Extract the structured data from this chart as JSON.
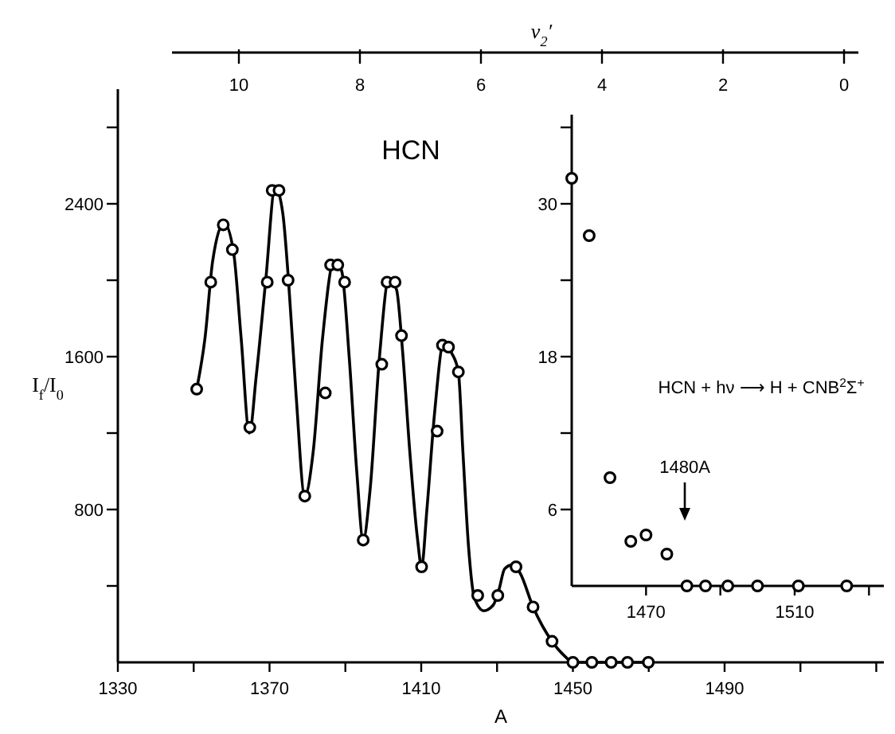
{
  "chart_data": [
    {
      "type": "line",
      "title": "HCN",
      "xlabel": "A",
      "ylabel": "I$_{f}$/I$_{0}$",
      "x2label": "ν$_{2}$′",
      "xlim": [
        1330,
        1532
      ],
      "xticks": [
        1330,
        {
          "value": 1350,
          "label": null
        },
        1370,
        {
          "value": 1390,
          "label": null
        },
        1410,
        {
          "value": 1430,
          "label": null
        },
        1450,
        {
          "value": 1470,
          "label": null
        },
        1490,
        {
          "value": 1510,
          "label": null
        },
        {
          "value": 1530,
          "label": null
        }
      ],
      "ylim": [
        0,
        3000
      ],
      "yticks": [
        {
          "value": 400,
          "label": null
        },
        800,
        {
          "value": 1200,
          "label": null
        },
        1600,
        {
          "value": 2000,
          "label": null
        },
        2400,
        {
          "value": 2800,
          "label": null
        }
      ],
      "x2lim": [
        10,
        0
      ],
      "x2ticks": [
        10,
        8,
        6,
        4,
        2,
        0
      ],
      "series": [
        {
          "color": "#000000",
          "line_style": "solid",
          "x": [
            1350.8,
            1353,
            1355,
            1358,
            1360.5,
            1362.5,
            1364.7,
            1366.5,
            1369,
            1371.5,
            1373.5,
            1375,
            1377,
            1379.3,
            1381.5,
            1384,
            1387,
            1389,
            1391,
            1393,
            1394.7,
            1396.5,
            1399,
            1401.5,
            1403.5,
            1405,
            1407,
            1409,
            1410.1,
            1411.5,
            1413.5,
            1416,
            1418,
            1419.8,
            1421,
            1422.5,
            1424,
            1426.5,
            1429,
            1430.5,
            1432,
            1434,
            1436,
            1439.5,
            1444.5,
            1448,
            1450,
            1470
          ],
          "values": [
            1430,
            1700,
            2100,
            2300,
            2150,
            1700,
            1200,
            1500,
            2000,
            2490,
            2350,
            2000,
            1400,
            870,
            1100,
            1700,
            2100,
            2050,
            1600,
            1000,
            640,
            900,
            1600,
            2010,
            1950,
            1650,
            1100,
            650,
            500,
            800,
            1300,
            1680,
            1620,
            1520,
            1100,
            600,
            340,
            270,
            300,
            380,
            490,
            510,
            470,
            290,
            110,
            30,
            0,
            0
          ]
        },
        {
          "type": "scatter",
          "color": "#000000",
          "marker": "circle",
          "x": [
            1350.8,
            1354.5,
            1357.8,
            1360.2,
            1364.8,
            1369.4,
            1370.7,
            1372.5,
            1374.9,
            1379.3,
            1384.7,
            1386.1,
            1388,
            1389.8,
            1394.7,
            1399.6,
            1401,
            1403.1,
            1404.8,
            1410.1,
            1414.2,
            1415.6,
            1417.2,
            1419.8,
            1424.9,
            1430.2,
            1435,
            1439.5,
            1444.5,
            1450,
            1455,
            1460.1,
            1464.4,
            1469.9
          ],
          "values": [
            1430,
            1990,
            2290,
            2160,
            1230,
            1990,
            2470,
            2470,
            2000,
            870,
            1410,
            2080,
            2080,
            1990,
            640,
            1560,
            1990,
            1990,
            1710,
            500,
            1210,
            1660,
            1650,
            1520,
            350,
            350,
            500,
            290,
            110,
            0,
            0,
            0,
            0,
            0
          ]
        }
      ]
    },
    {
      "type": "scatter",
      "xlim": [
        1450,
        1534
      ],
      "xticks": [
        1470,
        {
          "value": 1490,
          "label": null
        },
        1510,
        {
          "value": 1530,
          "label": null
        }
      ],
      "ylim": [
        0,
        37
      ],
      "yticks": [
        6,
        {
          "value": 12,
          "label": null
        },
        18,
        {
          "value": 24,
          "label": null
        },
        30,
        {
          "value": 36,
          "label": null
        }
      ],
      "annotations": [
        "HCN + hν ⟶ H + CNB$^{2}$Σ$^{+}$",
        "1480A"
      ],
      "series": [
        {
          "color": "#000000",
          "marker": "circle",
          "x": [
            1450,
            1454.7,
            1460.3,
            1465.9,
            1470,
            1475.6,
            1481,
            1486,
            1492,
            1500,
            1511,
            1524
          ],
          "values": [
            32,
            27.5,
            8.5,
            3.5,
            4,
            2.5,
            0,
            0,
            0,
            0,
            0,
            0
          ]
        }
      ]
    }
  ]
}
